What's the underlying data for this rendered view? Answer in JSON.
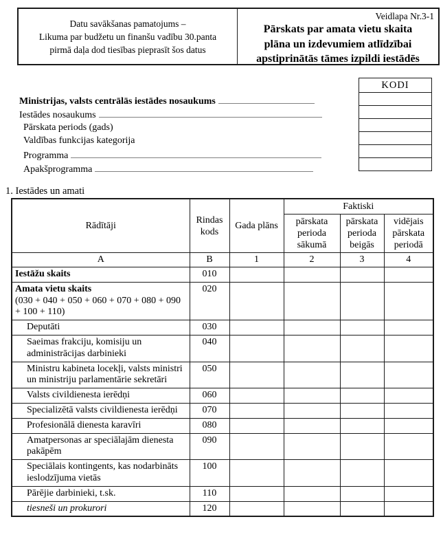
{
  "header": {
    "legal_basis_lines": [
      "Datu savākšanas pamatojums –",
      "Likuma par budžetu un finanšu vadību 30.panta",
      "pirmā daļa dod tiesības pieprasīt šos datus"
    ],
    "form_number": "Veidlapa Nr.3-1",
    "title_lines": [
      "Pārskats par amata vietu skaita",
      "plāna un izdevumiem atlīdzībai",
      "apstiprinātās tāmes izpildi iestādēs"
    ]
  },
  "kodi": {
    "header": "KODI",
    "empty_cell_count": 6
  },
  "info_fields": [
    {
      "label": "Ministrijas, valsts centrālās iestādes nosaukums",
      "bold": true,
      "underline": 140,
      "indent": 0
    },
    {
      "label": "Iestādes nosaukums",
      "bold": false,
      "underline": 325,
      "indent": 0
    },
    {
      "label": "Pārskata periods (gads)",
      "bold": false,
      "underline": 0,
      "indent": 6
    },
    {
      "label": "Valdības funkcijas kategorija",
      "bold": false,
      "underline": 0,
      "indent": 6
    },
    {
      "label": "Programma",
      "bold": false,
      "underline": 365,
      "indent": 6
    },
    {
      "label": "Apakšprogramma",
      "bold": false,
      "underline": 318,
      "indent": 6
    }
  ],
  "section_title": "1. Iestādes un amati",
  "table": {
    "col_headers": {
      "raditaji": "Rādītāji",
      "rindas_kods": "Rindas kods",
      "gada_plans": "Gada plāns",
      "faktiski": "Faktiski",
      "sub1": "pārskata perioda sākumā",
      "sub2": "pārskata perioda beigās",
      "sub3": "vidējais pārskata periodā"
    },
    "index_row": [
      "A",
      "B",
      "1",
      "2",
      "3",
      "4"
    ],
    "value_column_count": 4,
    "rows": [
      {
        "label": "Iestāžu skaits",
        "note": "",
        "code": "010",
        "style": "bold",
        "indent": false
      },
      {
        "label": "Amata vietu skaits",
        "note": "(030 + 040 + 050 + 060 + 070 + 080 + 090 + 100 + 110)",
        "code": "020",
        "style": "bold",
        "indent": false
      },
      {
        "label": "Deputāti",
        "note": "",
        "code": "030",
        "style": "normal",
        "indent": true
      },
      {
        "label": "Saeimas frakciju, komisiju un administrācijas darbinieki",
        "note": "",
        "code": "040",
        "style": "normal",
        "indent": true
      },
      {
        "label": "Ministru kabineta locekļi, valsts ministri un ministriju parlamentārie sekretāri",
        "note": "",
        "code": "050",
        "style": "normal",
        "indent": true
      },
      {
        "label": "Valsts civildienesta ierēdņi",
        "note": "",
        "code": "060",
        "style": "normal",
        "indent": true
      },
      {
        "label": "Specializētā valsts civildienesta ierēdņi",
        "note": "",
        "code": "070",
        "style": "normal",
        "indent": true
      },
      {
        "label": "Profesionālā dienesta karavīri",
        "note": "",
        "code": "080",
        "style": "normal",
        "indent": true
      },
      {
        "label": "Amatpersonas ar speciālajām dienesta pakāpēm",
        "note": "",
        "code": "090",
        "style": "normal",
        "indent": true
      },
      {
        "label": "Speciālais kontingents, kas nodarbināts ieslodzījuma vietās",
        "note": "",
        "code": "100",
        "style": "normal",
        "indent": true
      },
      {
        "label": "Pārējie darbinieki, t.sk.",
        "note": "",
        "code": "110",
        "style": "normal",
        "indent": true
      },
      {
        "label": "tiesneši un prokurori",
        "note": "",
        "code": "120",
        "style": "italic",
        "indent": true
      }
    ]
  }
}
